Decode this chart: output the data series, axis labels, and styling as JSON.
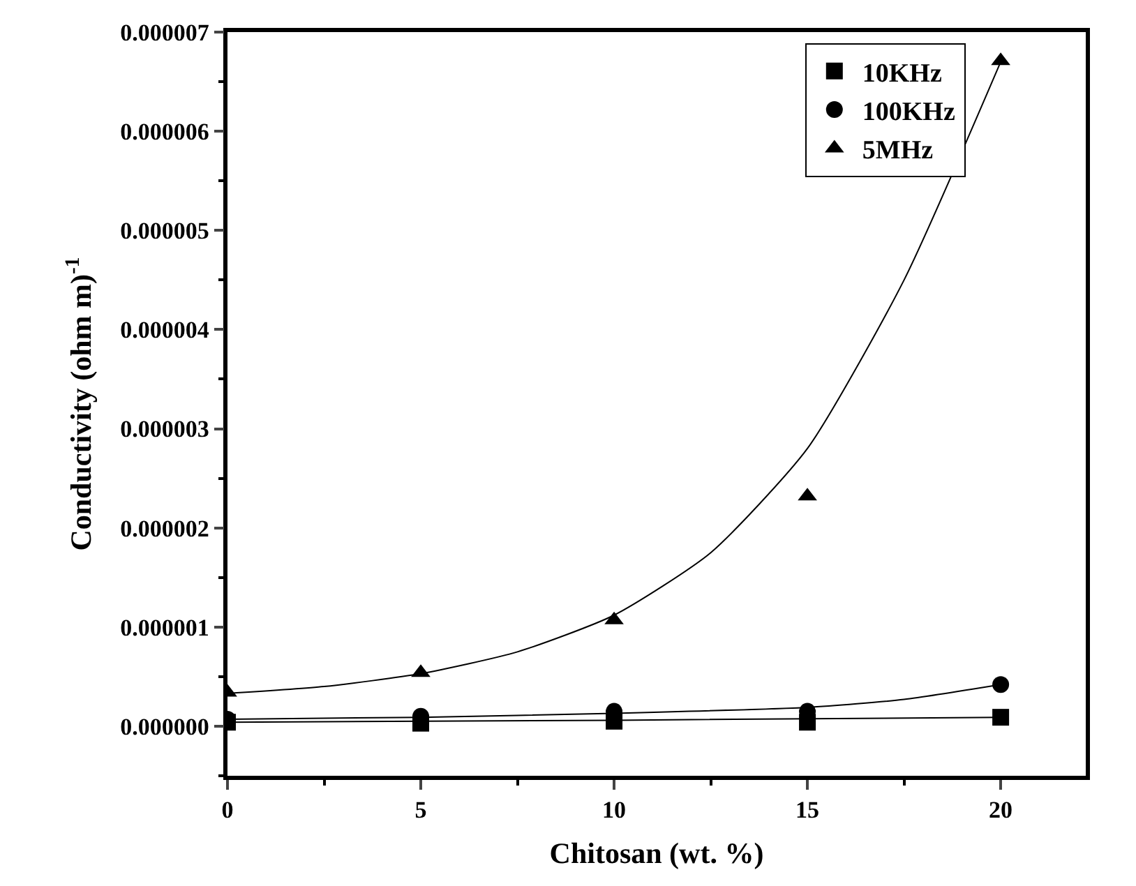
{
  "chart_data": {
    "type": "scatter",
    "xlabel": "Chitosan (wt. %)",
    "ylabel": "Conductivity (ohm m)$^{-1}$",
    "xlim": [
      0,
      22.2
    ],
    "ylim": [
      -5e-07,
      7e-06
    ],
    "xticks": [
      0,
      5,
      10,
      15,
      20
    ],
    "yticks": [
      {
        "value": 0,
        "label": "0.000000"
      },
      {
        "value": 1e-06,
        "label": "0.000001"
      },
      {
        "value": 2e-06,
        "label": "0.000002"
      },
      {
        "value": 3e-06,
        "label": "0.000003"
      },
      {
        "value": 4e-06,
        "label": "0.000004"
      },
      {
        "value": 5e-06,
        "label": "0.000005"
      },
      {
        "value": 6e-06,
        "label": "0.000006"
      },
      {
        "value": 7e-06,
        "label": "0.000007"
      }
    ],
    "legend": "top right",
    "series": [
      {
        "name": "10KHz",
        "marker": "square",
        "color": "#000000",
        "x": [
          0,
          5,
          10,
          15,
          20
        ],
        "values": [
          4e-08,
          3e-08,
          5e-08,
          4e-08,
          9e-08
        ]
      },
      {
        "name": "100KHz",
        "marker": "circle",
        "color": "#000000",
        "x": [
          0,
          5,
          10,
          15,
          20
        ],
        "values": [
          7e-08,
          1e-07,
          1.5e-07,
          1.5e-07,
          4.2e-07
        ]
      },
      {
        "name": "5MHz",
        "marker": "triangle",
        "color": "#000000",
        "x": [
          0,
          5,
          10,
          15,
          20
        ],
        "values": [
          3.4e-07,
          5.4e-07,
          1.07e-06,
          2.32e-06,
          6.71e-06
        ]
      },
      {
        "type": "line",
        "marker": "none",
        "color": "#000000",
        "x": [
          0,
          10,
          20
        ],
        "values": [
          4e-08,
          6e-08,
          9e-08
        ]
      },
      {
        "type": "line",
        "marker": "none",
        "color": "#000000",
        "x": [
          0,
          5,
          10,
          15,
          17.5,
          20
        ],
        "values": [
          7e-08,
          9e-08,
          1.3e-07,
          1.9e-07,
          2.7e-07,
          4.2e-07
        ]
      },
      {
        "type": "line",
        "marker": "none",
        "color": "#000000",
        "x": [
          0,
          2.5,
          5,
          7.5,
          10,
          12.5,
          15,
          17.5,
          20
        ],
        "values": [
          3.3e-07,
          4e-07,
          5.3e-07,
          7.5e-07,
          1.12e-06,
          1.75e-06,
          2.8e-06,
          4.5e-06,
          6.7e-06
        ]
      }
    ]
  }
}
